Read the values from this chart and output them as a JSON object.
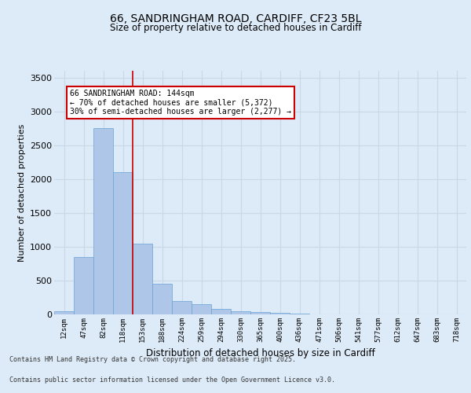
{
  "title_line1": "66, SANDRINGHAM ROAD, CARDIFF, CF23 5BL",
  "title_line2": "Size of property relative to detached houses in Cardiff",
  "xlabel": "Distribution of detached houses by size in Cardiff",
  "ylabel": "Number of detached properties",
  "categories": [
    "12sqm",
    "47sqm",
    "82sqm",
    "118sqm",
    "153sqm",
    "188sqm",
    "224sqm",
    "259sqm",
    "294sqm",
    "330sqm",
    "365sqm",
    "400sqm",
    "436sqm",
    "471sqm",
    "506sqm",
    "541sqm",
    "577sqm",
    "612sqm",
    "647sqm",
    "683sqm",
    "718sqm"
  ],
  "values": [
    50,
    850,
    2750,
    2100,
    1050,
    450,
    200,
    150,
    80,
    50,
    30,
    20,
    15,
    5,
    2,
    1,
    0,
    0,
    0,
    0,
    0
  ],
  "bar_color": "#aec6e8",
  "bar_edge_color": "#6aa3d4",
  "grid_color": "#c8d8e8",
  "background_color": "#ddeaf7",
  "vline_x": 3,
  "vline_color": "#cc0000",
  "annotation_box_text": "66 SANDRINGHAM ROAD: 144sqm\n← 70% of detached houses are smaller (5,372)\n30% of semi-detached houses are larger (2,277) →",
  "ylim": [
    0,
    3600
  ],
  "yticks": [
    0,
    500,
    1000,
    1500,
    2000,
    2500,
    3000,
    3500
  ],
  "footer_line1": "Contains HM Land Registry data © Crown copyright and database right 2025.",
  "footer_line2": "Contains public sector information licensed under the Open Government Licence v3.0."
}
